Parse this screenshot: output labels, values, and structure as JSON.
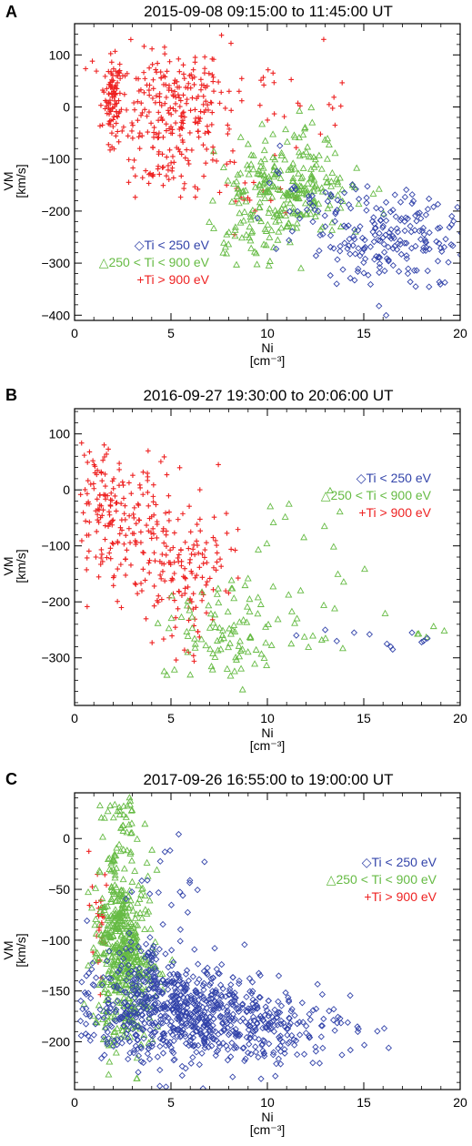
{
  "figure": {
    "panels": [
      "A",
      "B",
      "C"
    ]
  },
  "axis_labels": {
    "x_main": "Ni",
    "x_unit": "[cm⁻³]",
    "y_main": "VM",
    "y_unit": "[km/s]"
  },
  "legend": [
    {
      "symbol": "◇",
      "label": "Ti < 250 eV",
      "color": "#3344aa",
      "marker": "diamond-icon"
    },
    {
      "symbol": "△",
      "label": "250 < Ti < 900 eV",
      "color": "#66bb44",
      "marker": "triangle-icon"
    },
    {
      "symbol": "+",
      "label": "Ti > 900 eV",
      "color": "#ee2222",
      "marker": "plus-icon"
    }
  ],
  "colors": {
    "low": "#3344aa",
    "mid": "#66bb44",
    "high": "#ee2222"
  },
  "chart_data": [
    {
      "type": "scatter",
      "panel": "A",
      "title": "2015-09-08 09:15:00 to 11:45:00 UT",
      "xlabel": "Ni [cm⁻³]",
      "ylabel": "VM [km/s]",
      "xlim": [
        0,
        20
      ],
      "ylim": [
        -410,
        160
      ],
      "xticks": [
        0,
        5,
        10,
        15,
        20
      ],
      "yticks": [
        -400,
        -300,
        -200,
        -100,
        0,
        100
      ],
      "legend_position": "lower-left",
      "series": [
        {
          "name": "Ti < 250 eV",
          "marker": "diamond",
          "color": "#3344aa",
          "count": 230,
          "clusters": [
            {
              "cx": 16.5,
              "cy": -255,
              "sx": 2.2,
              "sy": 45,
              "n": 200
            },
            {
              "cx": 12.5,
              "cy": -180,
              "sx": 1.2,
              "sy": 30,
              "n": 30
            }
          ]
        },
        {
          "name": "250 < Ti < 900 eV",
          "marker": "triangle",
          "color": "#66bb44",
          "count": 300,
          "clusters": [
            {
              "cx": 11.0,
              "cy": -160,
              "sx": 1.8,
              "sy": 40,
              "n": 230
            },
            {
              "cx": 9.5,
              "cy": -240,
              "sx": 1.2,
              "sy": 35,
              "n": 50
            },
            {
              "cx": 12.5,
              "cy": -70,
              "sx": 1.0,
              "sy": 30,
              "n": 20
            }
          ]
        },
        {
          "name": "Ti > 900 eV",
          "marker": "plus",
          "color": "#ee2222",
          "count": 420,
          "clusters": [
            {
              "cx": 2.0,
              "cy": 15,
              "sx": 0.2,
              "sy": 35,
              "n": 80
            },
            {
              "cx": 4.8,
              "cy": 10,
              "sx": 1.6,
              "sy": 55,
              "n": 230
            },
            {
              "cx": 5.0,
              "cy": -100,
              "sx": 1.2,
              "sy": 40,
              "n": 60
            },
            {
              "cx": 10.0,
              "cy": 10,
              "sx": 2.5,
              "sy": 40,
              "n": 30
            },
            {
              "cx": 9.0,
              "cy": -170,
              "sx": 1.2,
              "sy": 25,
              "n": 20
            }
          ]
        }
      ]
    },
    {
      "type": "scatter",
      "panel": "B",
      "title": "2016-09-27 19:30:00 to 20:06:00 UT",
      "xlabel": "Ni [cm⁻³]",
      "ylabel": "VM [km/s]",
      "xlim": [
        0,
        20
      ],
      "ylim": [
        -385,
        145
      ],
      "xticks": [
        0,
        5,
        10,
        15,
        20
      ],
      "yticks": [
        -300,
        -200,
        -100,
        0,
        100
      ],
      "legend_position": "top-right",
      "series": [
        {
          "name": "Ti < 250 eV",
          "marker": "diamond",
          "color": "#3344aa",
          "count": 12,
          "points": [
            [
              13.0,
              -250
            ],
            [
              14.5,
              -255
            ],
            [
              15.3,
              -258
            ],
            [
              16.2,
              -275
            ],
            [
              16.5,
              -285
            ],
            [
              17.5,
              -255
            ],
            [
              18.1,
              -270
            ],
            [
              18.3,
              -265
            ],
            [
              13.6,
              -270
            ],
            [
              11.5,
              -260
            ],
            [
              16.4,
              -280
            ],
            [
              18.0,
              -272
            ]
          ]
        },
        {
          "name": "250 < Ti < 900 eV",
          "marker": "triangle",
          "color": "#66bb44",
          "count": 130,
          "clusters": [
            {
              "cx": 7.8,
              "cy": -260,
              "sx": 1.3,
              "sy": 45,
              "n": 90
            },
            {
              "cx": 12.0,
              "cy": -230,
              "sx": 2.0,
              "sy": 45,
              "n": 25
            },
            {
              "cx": 11.5,
              "cy": -60,
              "sx": 1.5,
              "sy": 35,
              "n": 10
            },
            {
              "cx": 18.2,
              "cy": -250,
              "sx": 0.5,
              "sy": 10,
              "n": 5
            }
          ]
        },
        {
          "name": "Ti > 900 eV",
          "marker": "plus",
          "color": "#ee2222",
          "count": 330,
          "clusters": [
            {
              "cx": 1.5,
              "cy": -30,
              "sx": 0.7,
              "sy": 55,
              "n": 90
            },
            {
              "cx": 3.5,
              "cy": -80,
              "sx": 1.3,
              "sy": 60,
              "n": 120
            },
            {
              "cx": 6.0,
              "cy": -150,
              "sx": 1.2,
              "sy": 60,
              "n": 120
            }
          ]
        }
      ]
    },
    {
      "type": "scatter",
      "panel": "C",
      "title": "2017-09-26 16:55:00 to 19:00:00 UT",
      "xlabel": "Ni [cm⁻³]",
      "ylabel": "VM [km/s]",
      "xlim": [
        0,
        20
      ],
      "ylim": [
        -247,
        45
      ],
      "xticks": [
        0,
        5,
        10,
        15,
        20
      ],
      "yticks": [
        -200,
        -150,
        -100,
        -50,
        0
      ],
      "legend_position": "top-right",
      "series": [
        {
          "name": "Ti < 250 eV",
          "marker": "diamond",
          "color": "#3344aa",
          "count": 900,
          "clusters": [
            {
              "cx": 5.2,
              "cy": -170,
              "sx": 2.3,
              "sy": 25,
              "n": 650
            },
            {
              "cx": 9.5,
              "cy": -185,
              "sx": 2.5,
              "sy": 18,
              "n": 200
            },
            {
              "cx": 4.5,
              "cy": -40,
              "sx": 1.5,
              "sy": 30,
              "n": 20
            },
            {
              "cx": 3.5,
              "cy": -125,
              "sx": 0.6,
              "sy": 20,
              "n": 30
            }
          ]
        },
        {
          "name": "250 < Ti < 900 eV",
          "marker": "triangle",
          "color": "#66bb44",
          "count": 550,
          "clusters": [
            {
              "cx": 2.3,
              "cy": -105,
              "sx": 0.6,
              "sy": 50,
              "n": 400
            },
            {
              "cx": 3.3,
              "cy": -130,
              "sx": 0.7,
              "sy": 40,
              "n": 130
            },
            {
              "cx": 2.5,
              "cy": 20,
              "sx": 0.5,
              "sy": 15,
              "n": 20
            }
          ]
        },
        {
          "name": "Ti > 900 eV",
          "marker": "plus",
          "color": "#ee2222",
          "count": 30,
          "clusters": [
            {
              "cx": 1.2,
              "cy": -70,
              "sx": 0.25,
              "sy": 45,
              "n": 30
            }
          ]
        }
      ]
    }
  ]
}
